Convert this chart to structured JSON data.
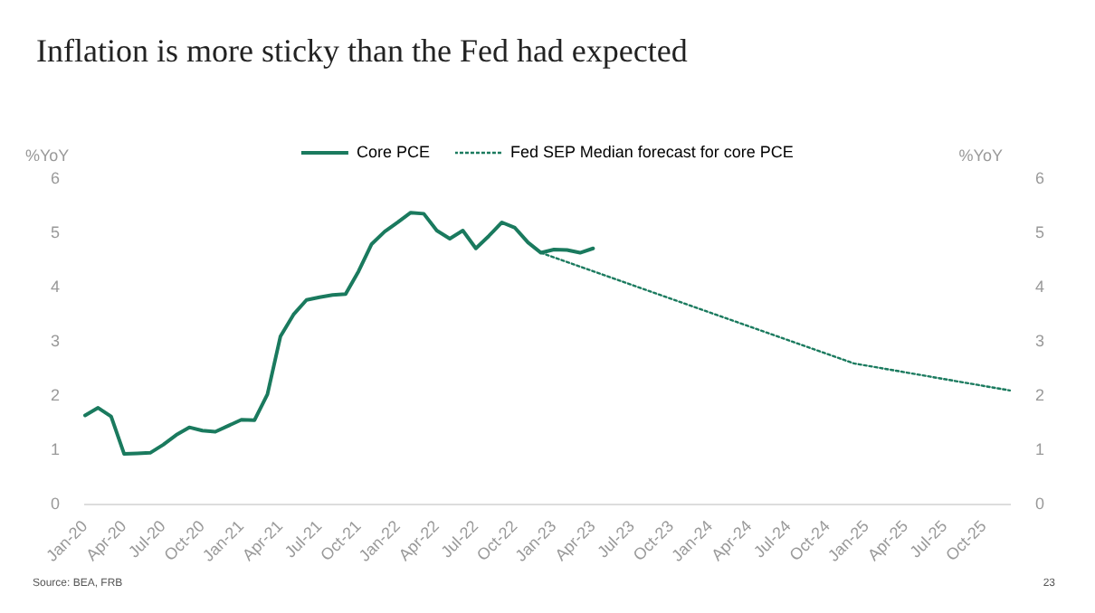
{
  "chart_data": {
    "type": "line",
    "title": "Inflation is more sticky than the Fed had expected",
    "ylabel": "%YoY",
    "y2label": "%YoY",
    "categories": [
      "Jan-20",
      null,
      null,
      "Apr-20",
      null,
      null,
      "Jul-20",
      null,
      null,
      "Oct-20",
      null,
      null,
      "Jan-21",
      null,
      null,
      "Apr-21",
      null,
      null,
      "Jul-21",
      null,
      null,
      "Oct-21",
      null,
      null,
      "Jan-22",
      null,
      null,
      "Apr-22",
      null,
      null,
      "Jul-22",
      null,
      null,
      "Oct-22",
      null,
      null,
      "Jan-23",
      null,
      null,
      "Apr-23",
      null,
      null,
      "Jul-23",
      null,
      null,
      "Oct-23",
      null,
      null,
      "Jan-24",
      null,
      null,
      "Apr-24",
      null,
      null,
      "Jul-24",
      null,
      null,
      "Oct-24",
      null,
      null,
      "Jan-25",
      null,
      null,
      "Apr-25",
      null,
      null,
      "Jul-25",
      null,
      null,
      "Oct-25",
      null,
      null
    ],
    "series": [
      {
        "name": "Core PCE",
        "color": "#1a7a5e",
        "line_style": "solid",
        "values": [
          1.64,
          1.78,
          1.62,
          0.93,
          0.94,
          0.95,
          1.1,
          1.28,
          1.42,
          1.36,
          1.34,
          1.45,
          1.56,
          1.55,
          2.03,
          3.1,
          3.5,
          3.77,
          3.82,
          3.86,
          3.88,
          4.3,
          4.8,
          5.03,
          5.2,
          5.38,
          5.36,
          5.05,
          4.9,
          5.05,
          4.72,
          4.95,
          5.2,
          5.1,
          4.83,
          4.64,
          4.7,
          4.69,
          4.64,
          4.72,
          null,
          null,
          null,
          null,
          null,
          null,
          null,
          null,
          null,
          null,
          null,
          null,
          null,
          null,
          null,
          null,
          null,
          null,
          null,
          null,
          null,
          null,
          null,
          null,
          null,
          null,
          null,
          null,
          null,
          null,
          null,
          null
        ]
      },
      {
        "name": "Fed SEP Median forecast for core PCE",
        "color": "#1a7a5e",
        "line_style": "dotted",
        "values": [
          null,
          null,
          null,
          null,
          null,
          null,
          null,
          null,
          null,
          null,
          null,
          null,
          null,
          null,
          null,
          null,
          null,
          null,
          null,
          null,
          null,
          null,
          null,
          null,
          null,
          null,
          null,
          null,
          null,
          null,
          null,
          null,
          null,
          null,
          null,
          4.64,
          null,
          null,
          null,
          null,
          null,
          null,
          null,
          null,
          null,
          null,
          null,
          null,
          null,
          null,
          null,
          null,
          null,
          null,
          null,
          null,
          null,
          null,
          null,
          2.6,
          null,
          null,
          null,
          null,
          null,
          null,
          null,
          null,
          null,
          null,
          null,
          2.1
        ]
      }
    ],
    "ylim": [
      0,
      6
    ],
    "yticks": [
      0,
      1,
      2,
      3,
      4,
      5,
      6
    ],
    "y2lim": [
      0,
      6
    ],
    "y2ticks": [
      0,
      1,
      2,
      3,
      4,
      5,
      6
    ],
    "legend": "top",
    "marker": "none",
    "annotations": [
      "Source: BEA, FRB",
      "23"
    ]
  }
}
